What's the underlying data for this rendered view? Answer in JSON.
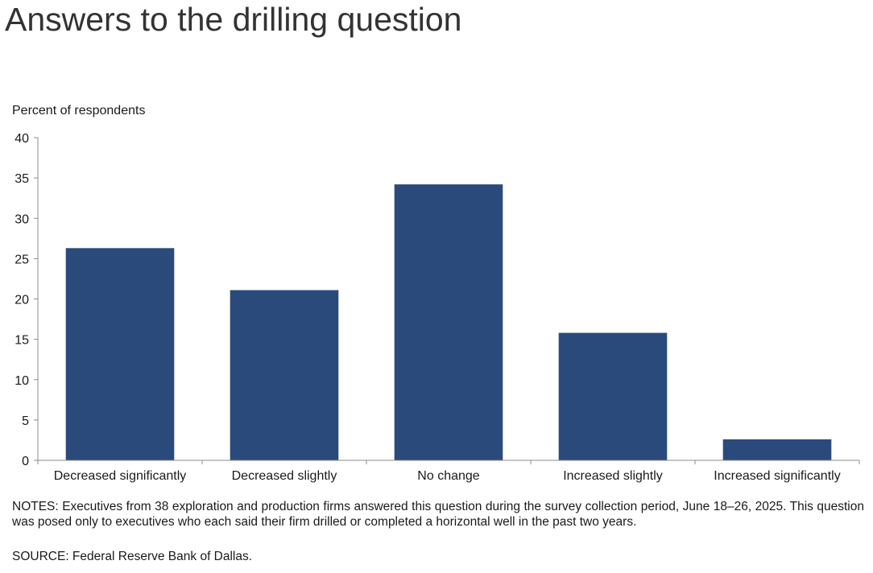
{
  "title": "Answers to the drilling question",
  "notes": "NOTES: Executives from 38 exploration and production firms answered this question during the survey collection period, June 18–26, 2025. This question was posed only to executives who each said their firm drilled or completed a horizontal well in the past two years.",
  "source": "SOURCE: Federal Reserve Bank of Dallas.",
  "colors": {
    "bar": "#2b4a7c",
    "axis": "#8c8c8c"
  },
  "chart_data": {
    "type": "bar",
    "title": "Answers to the drilling question",
    "ylabel": "Percent of respondents",
    "xlabel": "",
    "categories": [
      "Decreased significantly",
      "Decreased slightly",
      "No change",
      "Increased slightly",
      "Increased significantly"
    ],
    "values": [
      26.3,
      21.1,
      34.2,
      15.8,
      2.6
    ],
    "ylim": [
      0,
      40
    ],
    "yticks": [
      0,
      5,
      10,
      15,
      20,
      25,
      30,
      35,
      40
    ],
    "grid": false,
    "legend": "none"
  }
}
